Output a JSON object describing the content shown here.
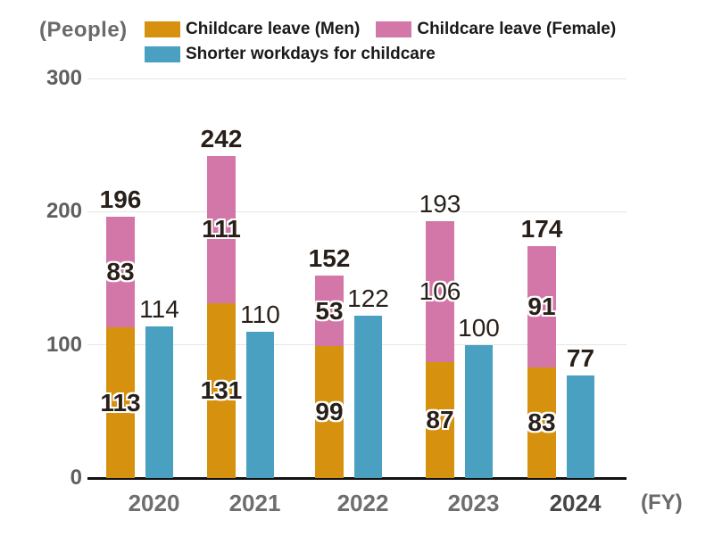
{
  "unit_label": "(People)",
  "fy_label": "(FY)",
  "colors": {
    "men": "#D6920E",
    "female": "#D377A8",
    "shorter": "#4AA0C0",
    "gridline": "#E8E6E5",
    "axis_line": "#111111",
    "value_text": "#281F19",
    "axis_text": "#6E6E6E"
  },
  "chart_data": {
    "type": "bar",
    "title": "",
    "ylabel": "(People)",
    "xlabel": "(FY)",
    "ylim": [
      0,
      300
    ],
    "yticks": [
      0,
      100,
      200,
      300
    ],
    "grid": true,
    "legend_position": "top",
    "categories": [
      "2020",
      "2021",
      "2022",
      "2023",
      "2024"
    ],
    "series": [
      {
        "name": "Childcare leave (Men)",
        "color": "#D6920E",
        "stacked": true,
        "values": [
          113,
          131,
          99,
          87,
          83
        ]
      },
      {
        "name": "Childcare leave (Female)",
        "color": "#D377A8",
        "stacked": true,
        "values": [
          83,
          111,
          53,
          106,
          91
        ]
      },
      {
        "name": "Shorter workdays for childcare",
        "color": "#4AA0C0",
        "stacked": false,
        "values": [
          114,
          110,
          122,
          100,
          77
        ]
      }
    ],
    "stack_totals": [
      196,
      242,
      152,
      193,
      174
    ],
    "label_bold": {
      "totals": [
        true,
        true,
        true,
        false,
        true
      ],
      "men": [
        true,
        true,
        true,
        true,
        true
      ],
      "female": [
        true,
        true,
        true,
        false,
        true
      ],
      "shorter": [
        false,
        false,
        false,
        false,
        true
      ]
    },
    "highlighted_category_index": 4
  }
}
